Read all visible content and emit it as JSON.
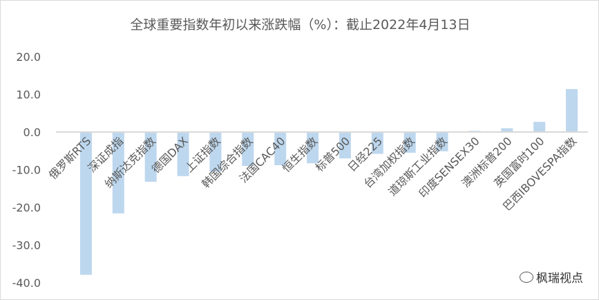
{
  "chart_data": {
    "type": "bar",
    "title": "全球重要指数年初以来涨跌幅（%）：截止2022年4月13日",
    "xlabel": "",
    "ylabel": "",
    "ylim": [
      -40,
      20
    ],
    "yticks": [
      "20.0",
      "10.0",
      "0.0",
      "-10.0",
      "-20.0",
      "-30.0",
      "-40.0"
    ],
    "grid": false,
    "categories": [
      "俄罗斯RTS",
      "深证成指",
      "纳斯达克指数",
      "德国DAX",
      "上证指数",
      "韩国综合指数",
      "法国CAC40",
      "恒生指数",
      "标普500",
      "日经225",
      "台湾加权指数",
      "道琼斯工业指数",
      "印度SENSEX30",
      "澳洲标普200",
      "英国富时100",
      "巴西IBOVESPA指数"
    ],
    "values": [
      -37.9,
      -21.6,
      -13.2,
      -11.7,
      -10.5,
      -9.0,
      -8.8,
      -8.3,
      -7.0,
      -5.8,
      -5.5,
      -5.1,
      0.3,
      1.0,
      2.7,
      11.4
    ],
    "bar_color": "#bdd7ee",
    "axis_color": "#d9d9d9"
  },
  "watermark": "枫瑞视点"
}
